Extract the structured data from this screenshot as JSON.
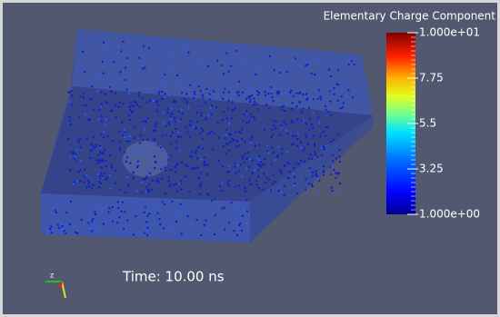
{
  "scalar_bar": {
    "title": "Elementary Charge Component",
    "range": [
      1,
      10
    ],
    "ticks": [
      {
        "value": 10,
        "label": "1.000e+01"
      },
      7.75,
      5.5,
      3.25,
      {
        "value": 1,
        "label": "1.000e+00"
      }
    ]
  },
  "time_label": "Time: 10.00 ns",
  "axes_triad": {
    "label": "z"
  }
}
